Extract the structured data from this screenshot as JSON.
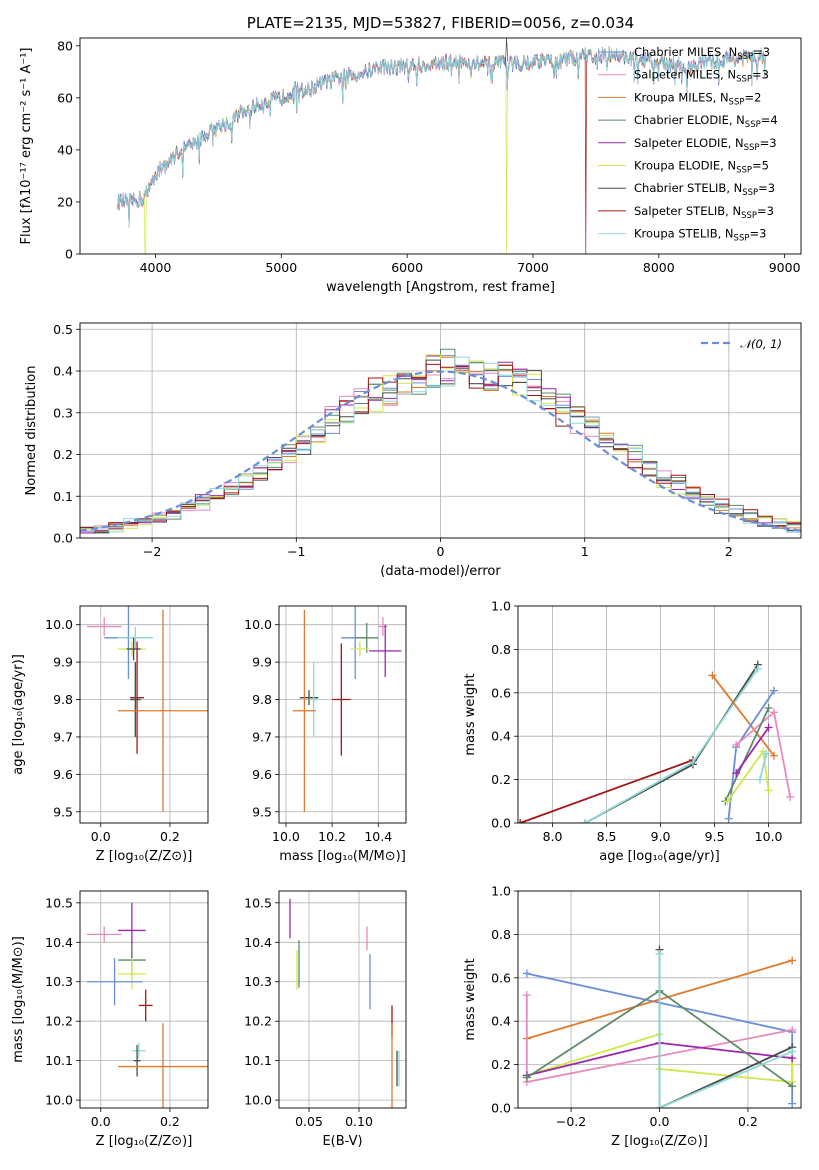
{
  "colors": {
    "chabrier_miles": "#6a8fd9",
    "salpeter_miles": "#e88ac1",
    "kroupa_miles": "#e07a2c",
    "chabrier_elodie": "#5f8a6a",
    "salpeter_elodie": "#9b27b0",
    "kroupa_elodie": "#cfe84a",
    "chabrier_stelib": "#4a4a4a",
    "salpeter_stelib": "#a31515",
    "kroupa_stelib": "#8fd8d8"
  },
  "chart_data": [
    {
      "id": "spectrum",
      "type": "line",
      "title": "PLATE=2135, MJD=53827, FIBERID=0056, z=0.034",
      "xlabel": "wavelength [Angstrom, rest frame]",
      "ylabel": "Flux [fλ10⁻¹⁷ erg cm⁻² s⁻¹ A⁻¹]",
      "xlim": [
        3400,
        9130
      ],
      "ylim": [
        0,
        83
      ],
      "xticks": [
        4000,
        5000,
        6000,
        7000,
        8000,
        9000
      ],
      "yticks": [
        0,
        20,
        40,
        60,
        80
      ],
      "grid": false,
      "legend_position": "top-right",
      "continuum_x": [
        3700,
        3900,
        4000,
        4100,
        4200,
        4300,
        4400,
        4500,
        4600,
        4700,
        4800,
        4900,
        5000,
        5100,
        5200,
        5400,
        5600,
        5800,
        6000,
        6200,
        6400,
        6600,
        6800,
        7000,
        7200,
        7400,
        7600,
        7800,
        8000,
        8200,
        8400,
        8600,
        8800
      ],
      "continuum_y": [
        20,
        21,
        31,
        35,
        40,
        42,
        46,
        49,
        51,
        55,
        57,
        59,
        60,
        63,
        63,
        67,
        69,
        72,
        72,
        73,
        74,
        73,
        73,
        74,
        74,
        76,
        77,
        75,
        74,
        72,
        74,
        75,
        76
      ],
      "drops": [
        {
          "series": "Kroupa ELODIE",
          "x": [
            3920,
            6790
          ]
        },
        {
          "series": "Salpeter STELIB",
          "x": [
            7420
          ]
        }
      ],
      "series": [
        {
          "key": "chabrier_miles",
          "label": "Chabrier MILES, N",
          "sub": "SSP",
          "count": "=3"
        },
        {
          "key": "salpeter_miles",
          "label": "Salpeter MILES, N",
          "sub": "SSP",
          "count": "=3"
        },
        {
          "key": "kroupa_miles",
          "label": "Kroupa MILES, N",
          "sub": "SSP",
          "count": "=2"
        },
        {
          "key": "chabrier_elodie",
          "label": "Chabrier ELODIE, N",
          "sub": "SSP",
          "count": "=4"
        },
        {
          "key": "salpeter_elodie",
          "label": "Salpeter ELODIE, N",
          "sub": "SSP",
          "count": "=3"
        },
        {
          "key": "kroupa_elodie",
          "label": "Kroupa ELODIE, N",
          "sub": "SSP",
          "count": "=5"
        },
        {
          "key": "chabrier_stelib",
          "label": "Chabrier STELIB, N",
          "sub": "SSP",
          "count": "=3"
        },
        {
          "key": "salpeter_stelib",
          "label": "Salpeter STELIB, N",
          "sub": "SSP",
          "count": "=3"
        },
        {
          "key": "kroupa_stelib",
          "label": "Kroupa STELIB, N",
          "sub": "SSP",
          "count": "=3"
        }
      ]
    },
    {
      "id": "residuals",
      "type": "bar",
      "xlabel": "(data-model)/error",
      "ylabel": "Normed distribution",
      "xlim": [
        -2.5,
        2.5
      ],
      "ylim": [
        0,
        0.515
      ],
      "xticks": [
        -2,
        -1,
        0,
        1,
        2
      ],
      "xtick_labels": [
        "−2",
        "−1",
        "0",
        "1",
        "2"
      ],
      "yticks": [
        0.0,
        0.1,
        0.2,
        0.3,
        0.4,
        0.5
      ],
      "ytick_labels": [
        "0.0",
        "0.1",
        "0.2",
        "0.3",
        "0.4",
        "0.5"
      ],
      "grid": true,
      "legend_position": "top-right",
      "legend_label": "𝒩(0, 1)",
      "bin_width": 0.1,
      "series_keys": [
        "chabrier_miles",
        "salpeter_miles",
        "kroupa_miles",
        "chabrier_elodie",
        "salpeter_elodie",
        "kroupa_elodie",
        "chabrier_stelib",
        "salpeter_stelib",
        "kroupa_stelib"
      ]
    },
    {
      "id": "age_vs_Z",
      "type": "scatter",
      "xlabel": "Z [log₁₀(Z/Z⊙)]",
      "ylabel": "age  [log₁₀(age/yr)]",
      "xlim": [
        -0.06,
        0.31
      ],
      "ylim": [
        9.47,
        10.05
      ],
      "xticks": [
        0.0,
        0.2
      ],
      "xtick_labels": [
        "0.0",
        "0.2"
      ],
      "yticks": [
        9.5,
        9.6,
        9.7,
        9.8,
        9.9,
        10.0
      ],
      "ytick_labels": [
        "9.5",
        "9.6",
        "9.7",
        "9.8",
        "9.9",
        "10.0"
      ],
      "grid": true,
      "points": [
        {
          "s": "salpeter_miles",
          "x": 0.01,
          "xe": 0.05,
          "y": 9.995,
          "ye": 0.025
        },
        {
          "s": "chabrier_miles",
          "x": 0.08,
          "xe": 0.07,
          "y": 9.965,
          "ye": 0.11
        },
        {
          "s": "kroupa_stelib",
          "x": 0.1,
          "xe": 0.05,
          "y": 9.965,
          "ye": 0.03
        },
        {
          "s": "kroupa_elodie",
          "x": 0.09,
          "xe": 0.04,
          "y": 9.935,
          "ye": 0.02
        },
        {
          "s": "chabrier_stelib",
          "x": 0.095,
          "xe": 0.02,
          "y": 9.935,
          "ye": 0.03
        },
        {
          "s": "salpeter_stelib",
          "x": 0.105,
          "xe": 0.02,
          "y": 9.805,
          "ye": 0.15
        },
        {
          "s": "kroupa_stelib",
          "x": 0.1,
          "xe": 0.02,
          "y": 9.8,
          "ye": 0.1
        },
        {
          "s": "chabrier_stelib",
          "x": 0.1,
          "xe": 0.015,
          "y": 9.8,
          "ye": 0.1
        },
        {
          "s": "kroupa_miles",
          "x": 0.18,
          "xe": 0.13,
          "y": 9.77,
          "ye": 0.27
        }
      ]
    },
    {
      "id": "age_vs_mass",
      "type": "scatter",
      "xlabel": "mass [log₁₀(M/M⊙)]",
      "xlim": [
        9.97,
        10.52
      ],
      "ylim": [
        9.47,
        10.05
      ],
      "xticks": [
        10.0,
        10.2,
        10.4
      ],
      "xtick_labels": [
        "10.0",
        "10.2",
        "10.4"
      ],
      "yticks": [
        9.5,
        9.6,
        9.7,
        9.8,
        9.9,
        10.0
      ],
      "ytick_labels": [
        "9.5",
        "9.6",
        "9.7",
        "9.8",
        "9.9",
        "10.0"
      ],
      "grid": true,
      "points": [
        {
          "s": "salpeter_miles",
          "x": 10.42,
          "xe": 0.02,
          "y": 9.995,
          "ye": 0.025
        },
        {
          "s": "salpeter_elodie",
          "x": 10.43,
          "xe": 0.07,
          "y": 9.93,
          "ye": 0.07
        },
        {
          "s": "chabrier_miles",
          "x": 10.3,
          "xe": 0.06,
          "y": 9.965,
          "ye": 0.11
        },
        {
          "s": "chabrier_elodie",
          "x": 10.35,
          "xe": 0.05,
          "y": 9.965,
          "ye": 0.04
        },
        {
          "s": "kroupa_elodie",
          "x": 10.32,
          "xe": 0.04,
          "y": 9.935,
          "ye": 0.02
        },
        {
          "s": "chabrier_stelib",
          "x": 10.1,
          "xe": 0.04,
          "y": 9.805,
          "ye": 0.02
        },
        {
          "s": "kroupa_stelib",
          "x": 10.12,
          "xe": 0.02,
          "y": 9.8,
          "ye": 0.1
        },
        {
          "s": "salpeter_stelib",
          "x": 10.24,
          "xe": 0.04,
          "y": 9.8,
          "ye": 0.15
        },
        {
          "s": "kroupa_miles",
          "x": 10.08,
          "xe": 0.05,
          "y": 9.77,
          "ye": 0.27
        }
      ]
    },
    {
      "id": "weight_vs_age",
      "type": "line",
      "xlabel": "age  [log₁₀(age/yr)]",
      "ylabel": "mass weight",
      "xlim": [
        7.68,
        10.3
      ],
      "ylim": [
        0,
        1.0
      ],
      "xticks": [
        8.0,
        8.5,
        9.0,
        9.5,
        10.0
      ],
      "xtick_labels": [
        "8.0",
        "8.5",
        "9.0",
        "9.5",
        "10.0"
      ],
      "yticks": [
        0.0,
        0.2,
        0.4,
        0.6,
        0.8,
        1.0
      ],
      "ytick_labels": [
        "0.0",
        "0.2",
        "0.4",
        "0.6",
        "0.8",
        "1.0"
      ],
      "grid": true,
      "series": [
        {
          "s": "salpeter_stelib",
          "x": [
            7.7,
            9.3
          ],
          "y": [
            0.0,
            0.29
          ]
        },
        {
          "s": "chabrier_stelib",
          "x": [
            8.3,
            9.3,
            9.9
          ],
          "y": [
            0.0,
            0.27,
            0.73
          ]
        },
        {
          "s": "kroupa_stelib",
          "x": [
            8.3,
            9.3,
            9.9
          ],
          "y": [
            0.0,
            0.28,
            0.71
          ]
        },
        {
          "s": "kroupa_miles",
          "x": [
            9.48,
            10.05
          ],
          "y": [
            0.68,
            0.31
          ]
        },
        {
          "s": "chabrier_miles",
          "x": [
            9.63,
            9.7,
            10.05
          ],
          "y": [
            0.02,
            0.35,
            0.61
          ]
        },
        {
          "s": "salpeter_miles",
          "x": [
            9.7,
            10.05,
            10.2
          ],
          "y": [
            0.36,
            0.51,
            0.12
          ]
        },
        {
          "s": "chabrier_elodie",
          "x": [
            9.6,
            10.0
          ],
          "y": [
            0.1,
            0.53
          ]
        },
        {
          "s": "salpeter_elodie",
          "x": [
            9.7,
            10.0
          ],
          "y": [
            0.23,
            0.44
          ]
        },
        {
          "s": "kroupa_elodie",
          "x": [
            9.62,
            9.95,
            10.0
          ],
          "y": [
            0.1,
            0.33,
            0.15
          ]
        },
        {
          "s": "kroupa_stelib",
          "x": [
            9.92,
            9.98
          ],
          "y": [
            0.2,
            0.32
          ]
        }
      ]
    },
    {
      "id": "mass_vs_Z",
      "type": "scatter",
      "xlabel": "Z [log₁₀(Z/Z⊙)]",
      "ylabel": "mass [log₁₀(M/M⊙)]",
      "xlim": [
        -0.06,
        0.31
      ],
      "ylim": [
        9.98,
        10.53
      ],
      "xticks": [
        0.0,
        0.2
      ],
      "xtick_labels": [
        "0.0",
        "0.2"
      ],
      "yticks": [
        10.0,
        10.1,
        10.2,
        10.3,
        10.4,
        10.5
      ],
      "ytick_labels": [
        "10.0",
        "10.1",
        "10.2",
        "10.3",
        "10.4",
        "10.5"
      ],
      "grid": true,
      "points": [
        {
          "s": "salpeter_miles",
          "x": 0.01,
          "xe": 0.05,
          "y": 10.42,
          "ye": 0.02
        },
        {
          "s": "salpeter_elodie",
          "x": 0.09,
          "xe": 0.04,
          "y": 10.43,
          "ye": 0.07
        },
        {
          "s": "chabrier_elodie",
          "x": 0.09,
          "xe": 0.04,
          "y": 10.355,
          "ye": 0.04
        },
        {
          "s": "kroupa_elodie",
          "x": 0.09,
          "xe": 0.04,
          "y": 10.32,
          "ye": 0.04
        },
        {
          "s": "chabrier_miles",
          "x": 0.04,
          "xe": 0.08,
          "y": 10.3,
          "ye": 0.06
        },
        {
          "s": "salpeter_stelib",
          "x": 0.13,
          "xe": 0.02,
          "y": 10.24,
          "ye": 0.04
        },
        {
          "s": "kroupa_stelib",
          "x": 0.11,
          "xe": 0.02,
          "y": 10.125,
          "ye": 0.02
        },
        {
          "s": "chabrier_stelib",
          "x": 0.105,
          "xe": 0.01,
          "y": 10.1,
          "ye": 0.04
        },
        {
          "s": "kroupa_miles",
          "x": 0.18,
          "xe": 0.13,
          "y": 10.085,
          "ye": 0.11
        }
      ]
    },
    {
      "id": "mass_vs_ebv",
      "type": "scatter",
      "xlabel": "E(B-V)",
      "xlim": [
        0.02,
        0.147
      ],
      "ylim": [
        9.98,
        10.53
      ],
      "xticks": [
        0.05,
        0.1
      ],
      "xtick_labels": [
        "0.05",
        "0.10"
      ],
      "yticks": [
        10.0,
        10.1,
        10.2,
        10.3,
        10.4,
        10.5
      ],
      "ytick_labels": [
        "10.0",
        "10.1",
        "10.2",
        "10.3",
        "10.4",
        "10.5"
      ],
      "grid": true,
      "points": [
        {
          "s": "salpeter_elodie",
          "x": 0.031,
          "y": 10.46,
          "ye": 0.05
        },
        {
          "s": "kroupa_elodie",
          "x": 0.038,
          "y": 10.33,
          "ye": 0.05
        },
        {
          "s": "chabrier_elodie",
          "x": 0.04,
          "y": 10.345,
          "ye": 0.06
        },
        {
          "s": "salpeter_miles",
          "x": 0.108,
          "y": 10.41,
          "ye": 0.03
        },
        {
          "s": "chabrier_miles",
          "x": 0.111,
          "y": 10.3,
          "ye": 0.07
        },
        {
          "s": "salpeter_stelib",
          "x": 0.133,
          "y": 10.2,
          "ye": 0.04
        },
        {
          "s": "kroupa_miles",
          "x": 0.133,
          "y": 10.085,
          "ye": 0.11
        },
        {
          "s": "chabrier_stelib",
          "x": 0.138,
          "y": 10.08,
          "ye": 0.045
        },
        {
          "s": "kroupa_stelib",
          "x": 0.14,
          "y": 10.08,
          "ye": 0.045
        }
      ]
    },
    {
      "id": "weight_vs_Z",
      "type": "line",
      "xlabel": "Z [log₁₀(Z/Z⊙)]",
      "ylabel": "mass weight",
      "xlim": [
        -0.32,
        0.32
      ],
      "ylim": [
        0,
        1.0
      ],
      "xticks": [
        -0.2,
        0.0,
        0.2
      ],
      "xtick_labels": [
        "−0.2",
        "0.0",
        "0.2"
      ],
      "yticks": [
        0.0,
        0.2,
        0.4,
        0.6,
        0.8,
        1.0
      ],
      "ytick_labels": [
        "0.0",
        "0.2",
        "0.4",
        "0.6",
        "0.8",
        "1.0"
      ],
      "grid": true,
      "series": [
        {
          "s": "chabrier_miles",
          "x": [
            -0.3,
            0.3,
            0.3
          ],
          "y": [
            0.62,
            0.35,
            0.02
          ]
        },
        {
          "s": "kroupa_miles",
          "x": [
            -0.3,
            0.3
          ],
          "y": [
            0.32,
            0.68
          ]
        },
        {
          "s": "salpeter_miles",
          "x": [
            -0.3,
            -0.3,
            0.3
          ],
          "y": [
            0.52,
            0.12,
            0.36
          ]
        },
        {
          "s": "kroupa_elodie",
          "x": [
            -0.3,
            0.0,
            0.0,
            0.3,
            0.3
          ],
          "y": [
            0.15,
            0.34,
            0.18,
            0.12,
            0.2
          ]
        },
        {
          "s": "salpeter_elodie",
          "x": [
            -0.3,
            0.0,
            0.3
          ],
          "y": [
            0.15,
            0.3,
            0.23
          ]
        },
        {
          "s": "chabrier_elodie",
          "x": [
            -0.3,
            0.0,
            0.3
          ],
          "y": [
            0.14,
            0.54,
            0.1
          ]
        },
        {
          "s": "chabrier_stelib",
          "x": [
            0.0,
            0.0,
            0.3
          ],
          "y": [
            0.73,
            0.0,
            0.28
          ]
        },
        {
          "s": "kroupa_stelib",
          "x": [
            0.0,
            0.0,
            0.3
          ],
          "y": [
            0.71,
            0.0,
            0.26
          ]
        }
      ]
    }
  ]
}
